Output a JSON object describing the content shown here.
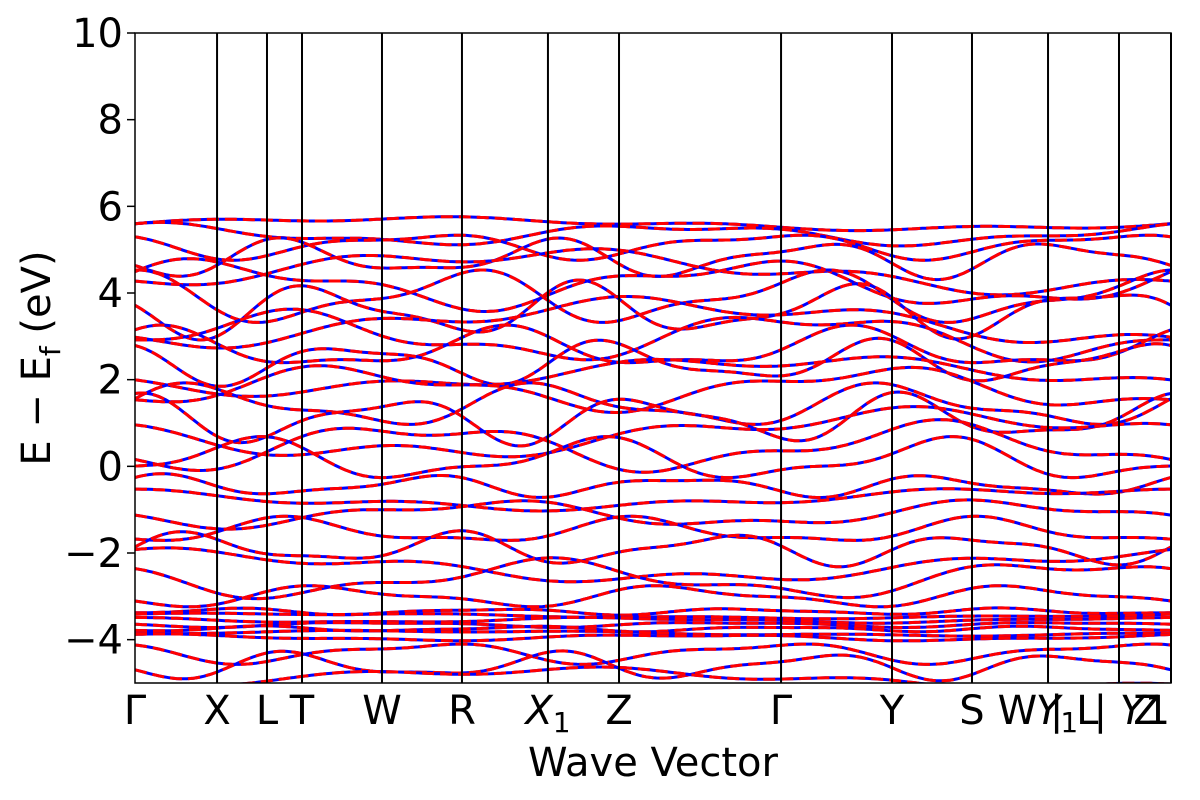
{
  "chart_data": {
    "type": "line",
    "title": "",
    "xlabel": "Wave Vector",
    "ylabel": "E − E_f (eV)",
    "ylabel_parts": {
      "main": "E  −  E",
      "sub": "f",
      "unit": " (eV)"
    },
    "ylim": [
      -5,
      10
    ],
    "yticks": [
      {
        "value": 10,
        "label": "10"
      },
      {
        "value": 8,
        "label": "8"
      },
      {
        "value": 6,
        "label": "6"
      },
      {
        "value": 4,
        "label": "4"
      },
      {
        "value": 2,
        "label": "2"
      },
      {
        "value": 0,
        "label": "0"
      },
      {
        "value": -2,
        "label": "−2"
      },
      {
        "value": -4,
        "label": "−4"
      }
    ],
    "kpath_range": [
      0,
      1
    ],
    "kpoints": [
      {
        "label": "Γ",
        "position": 0.0
      },
      {
        "label": "X",
        "position": 0.0792
      },
      {
        "label": "L",
        "position": 0.1274
      },
      {
        "label": "T",
        "position": 0.1612
      },
      {
        "label": "W",
        "position": 0.2384
      },
      {
        "label": "R",
        "position": 0.3156
      },
      {
        "label": "X",
        "sub": "1",
        "italic": true,
        "position": 0.3986
      },
      {
        "label": "Z",
        "position": 0.4672
      },
      {
        "label": "Γ",
        "position": 0.6236
      },
      {
        "label": "Y",
        "position": 0.7307
      },
      {
        "label": "S",
        "position": 0.8079
      },
      {
        "label": "W | L",
        "position": 0.8813
      },
      {
        "label": "Y",
        "sub": "1",
        "italic": true,
        "position": 0.89
      },
      {
        "label": "| Y",
        "italic": true,
        "position": 0.9498
      },
      {
        "label": "Z",
        "position": 0.9768
      },
      {
        "label": "1",
        "position": 0.9868
      }
    ],
    "vertical_lines": [
      0.0792,
      0.1274,
      0.1612,
      0.2384,
      0.3156,
      0.3986,
      0.4672,
      0.6236,
      0.7307,
      0.8079,
      0.8813,
      0.9498,
      1.0
    ],
    "series": [
      {
        "name": "",
        "color": "#0000ff",
        "style": "solid"
      },
      {
        "name": "",
        "color": "#ff0000",
        "style": "dashed"
      }
    ],
    "bands": [
      {
        "kind": "flat",
        "e": 5.6,
        "amp": 0.12
      },
      {
        "kind": "flat",
        "e": 5.35,
        "amp": 0.2
      },
      {
        "kind": "flat",
        "e": 5.1,
        "amp": 0.25
      },
      {
        "kind": "flat",
        "e": 4.8,
        "amp": 0.35
      },
      {
        "kind": "flat",
        "e": 4.5,
        "amp": 0.4
      },
      {
        "kind": "flat",
        "e": 4.2,
        "amp": 0.45
      },
      {
        "kind": "flat",
        "e": 3.9,
        "amp": 0.5
      },
      {
        "kind": "flat",
        "e": 3.6,
        "amp": 0.5
      },
      {
        "kind": "flat",
        "e": 3.3,
        "amp": 0.45
      },
      {
        "kind": "flat",
        "e": 3.0,
        "amp": 0.45
      },
      {
        "kind": "flat",
        "e": 2.7,
        "amp": 0.4
      },
      {
        "kind": "flat",
        "e": 2.4,
        "amp": 0.4
      },
      {
        "kind": "flat",
        "e": 2.1,
        "amp": 0.35
      },
      {
        "kind": "flat",
        "e": 1.8,
        "amp": 0.4
      },
      {
        "kind": "flat",
        "e": 1.4,
        "amp": 0.4
      },
      {
        "kind": "flat",
        "e": 1.1,
        "amp": 0.45
      },
      {
        "kind": "flat",
        "e": 0.75,
        "amp": 0.45
      },
      {
        "kind": "flat",
        "e": 0.45,
        "amp": 0.45
      },
      {
        "kind": "flat",
        "e": 0.15,
        "amp": 0.4
      },
      {
        "kind": "flat",
        "e": -0.45,
        "amp": 0.2
      },
      {
        "kind": "flat",
        "e": -0.75,
        "amp": 0.2
      },
      {
        "kind": "flat",
        "e": -1.1,
        "amp": 0.25
      },
      {
        "kind": "flat",
        "e": -1.5,
        "amp": 0.25
      },
      {
        "kind": "flat",
        "e": -1.9,
        "amp": 0.3
      },
      {
        "kind": "flat",
        "e": -2.3,
        "amp": 0.3
      },
      {
        "kind": "flat",
        "e": -2.6,
        "amp": 0.35
      },
      {
        "kind": "flat",
        "e": -3.0,
        "amp": 0.2
      },
      {
        "kind": "flat",
        "e": -3.35,
        "amp": 0.06
      },
      {
        "kind": "flat",
        "e": -3.45,
        "amp": 0.05
      },
      {
        "kind": "flat",
        "e": -3.55,
        "amp": 0.05
      },
      {
        "kind": "flat",
        "e": -3.65,
        "amp": 0.05
      },
      {
        "kind": "flat",
        "e": -3.75,
        "amp": 0.05
      },
      {
        "kind": "flat",
        "e": -3.85,
        "amp": 0.05
      },
      {
        "kind": "flat",
        "e": -3.95,
        "amp": 0.06
      },
      {
        "kind": "flat",
        "e": -4.3,
        "amp": 0.2
      },
      {
        "kind": "flat",
        "e": -4.6,
        "amp": 0.25
      },
      {
        "kind": "flat",
        "e": -4.9,
        "amp": 0.2
      }
    ]
  }
}
